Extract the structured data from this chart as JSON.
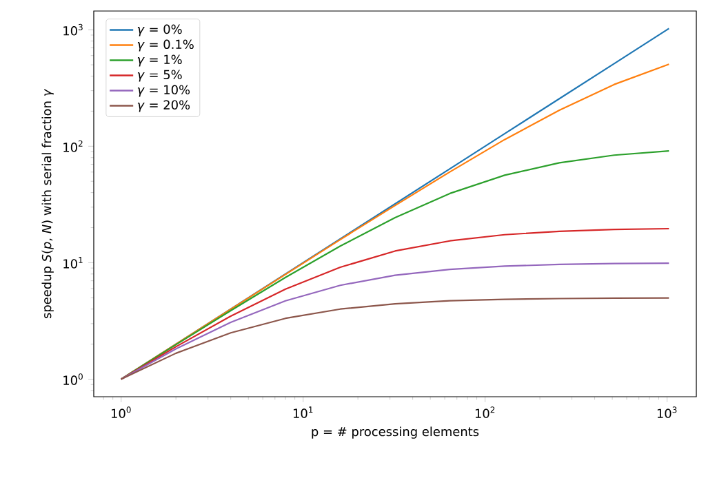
{
  "chart_data": {
    "type": "line",
    "xlabel": "p = # processing elements",
    "ylabel": "speedup *S*(*p*, *N*) with serial fraction *γ*",
    "x": [
      1,
      2,
      4,
      8,
      16,
      32,
      64,
      128,
      256,
      512,
      1024
    ],
    "series": [
      {
        "name": "*γ* = 0%",
        "color": "#1f77b4",
        "values": [
          1,
          2,
          4,
          8,
          16,
          32,
          64,
          128,
          256,
          512,
          1024
        ]
      },
      {
        "name": "*γ* = 0.1%",
        "color": "#ff7f0e",
        "values": [
          1,
          2.0,
          3.99,
          7.94,
          15.8,
          31.0,
          60.2,
          114,
          204,
          339,
          506
        ]
      },
      {
        "name": "*γ* = 1%",
        "color": "#2ca02c",
        "values": [
          1,
          1.98,
          3.88,
          7.48,
          13.9,
          24.4,
          39.3,
          56.4,
          72.1,
          83.8,
          91.2
        ]
      },
      {
        "name": "*γ* = 5%",
        "color": "#d62728",
        "values": [
          1,
          1.9,
          3.48,
          5.93,
          9.14,
          12.6,
          15.4,
          17.4,
          18.6,
          19.3,
          19.6
        ]
      },
      {
        "name": "*γ* = 10%",
        "color": "#9467bd",
        "values": [
          1,
          1.82,
          3.08,
          4.71,
          6.4,
          7.8,
          8.77,
          9.34,
          9.66,
          9.83,
          9.91
        ]
      },
      {
        "name": "*γ* = 20%",
        "color": "#8c564b",
        "values": [
          1,
          1.67,
          2.5,
          3.33,
          4.0,
          4.44,
          4.71,
          4.85,
          4.92,
          4.96,
          4.98
        ]
      }
    ],
    "log": "xy",
    "legend": "top left",
    "grid": false,
    "marker": "none",
    "line_style": "solid",
    "xlim": [
      0.707,
      1448
    ],
    "ylim": [
      0.707,
      1448
    ],
    "xticks": [
      {
        "value": 1,
        "label": "10$^{0}$"
      },
      {
        "value": 10,
        "label": "10$^{1}$"
      },
      {
        "value": 100,
        "label": "10$^{2}$"
      },
      {
        "value": 1000,
        "label": "10$^{3}$"
      }
    ],
    "yticks": [
      {
        "value": 1,
        "label": "10$^{0}$"
      },
      {
        "value": 10,
        "label": "10$^{1}$"
      },
      {
        "value": 100,
        "label": "10$^{2}$"
      },
      {
        "value": 1000,
        "label": "10$^{3}$"
      }
    ]
  }
}
